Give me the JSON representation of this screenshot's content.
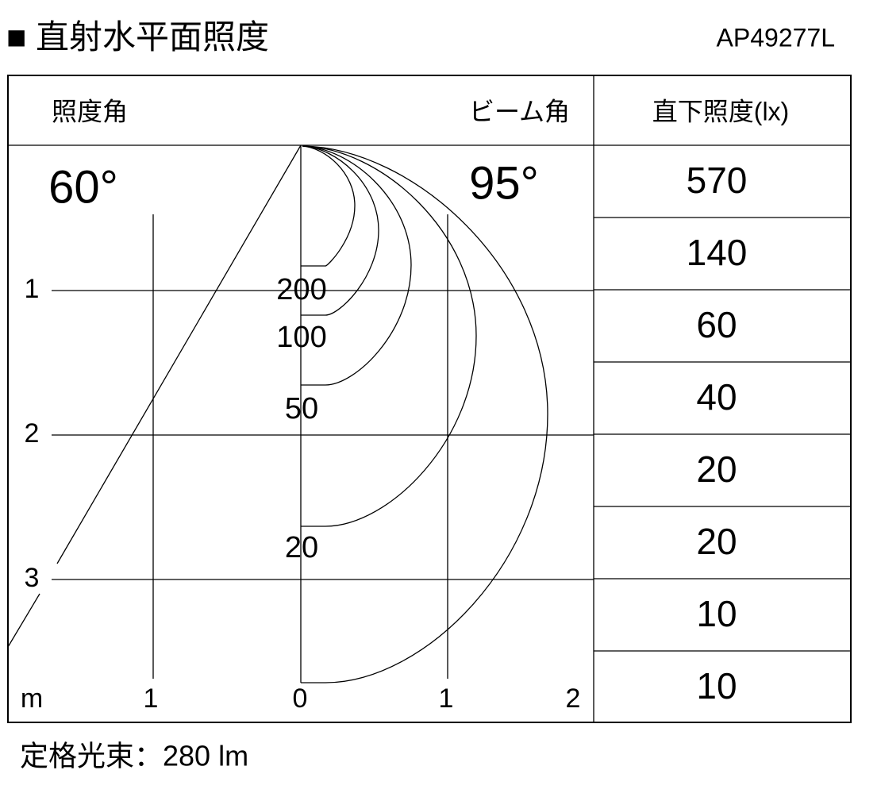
{
  "header": {
    "title": "■ 直射水平面照度",
    "model": "AP49277L"
  },
  "table": {
    "header": [
      "照度角",
      "ビーム角",
      "直下照度(lx)"
    ],
    "angles": [
      "60°",
      "95°"
    ],
    "illuminance": [
      "570",
      "140",
      "60",
      "40",
      "20",
      "20",
      "10",
      "10"
    ]
  },
  "diagram": {
    "depth_labels": [
      "1",
      "2",
      "3"
    ],
    "width_labels": [
      "m",
      "1",
      "0",
      "1",
      "2"
    ],
    "curve_labels": [
      "200",
      "100",
      "50",
      "20"
    ]
  },
  "footer": {
    "text": "定格光束：280 lm"
  }
}
